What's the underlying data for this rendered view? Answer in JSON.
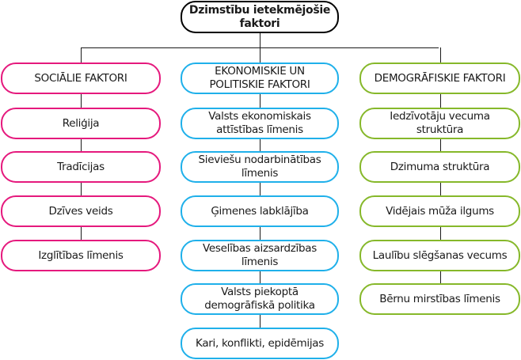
{
  "root": {
    "label": "Dzimstību ietekmējošie faktori"
  },
  "colors": {
    "social": "#e5197d",
    "economic": "#1fb0ea",
    "demographic": "#86b82a"
  },
  "columns": [
    {
      "header": "SOCIĀLIE FAKTORI",
      "items": [
        "Reliģija",
        "Tradīcijas",
        "Dzīves veids",
        "Izglītības līmenis"
      ]
    },
    {
      "header": "EKONOMISKIE UN POLITISKIE FAKTORI",
      "items": [
        "Valsts ekonomiskais attīstības līmenis",
        "Sieviešu nodarbinātības līmenis",
        "Ģimenes labklājība",
        "Veselības aizsardzības līmenis",
        "Valsts piekoptā demogrāfiskā politika",
        "Kari, konflikti, epidēmijas"
      ]
    },
    {
      "header": "DEMOGRĀFISKIE FAKTORI",
      "items": [
        "Iedzīvotāju vecuma struktūra",
        "Dzimuma struktūra",
        "Vidējais mūža ilgums",
        "Laulību slēgšanas vecums",
        "Bērnu mirstības līmenis"
      ]
    }
  ]
}
